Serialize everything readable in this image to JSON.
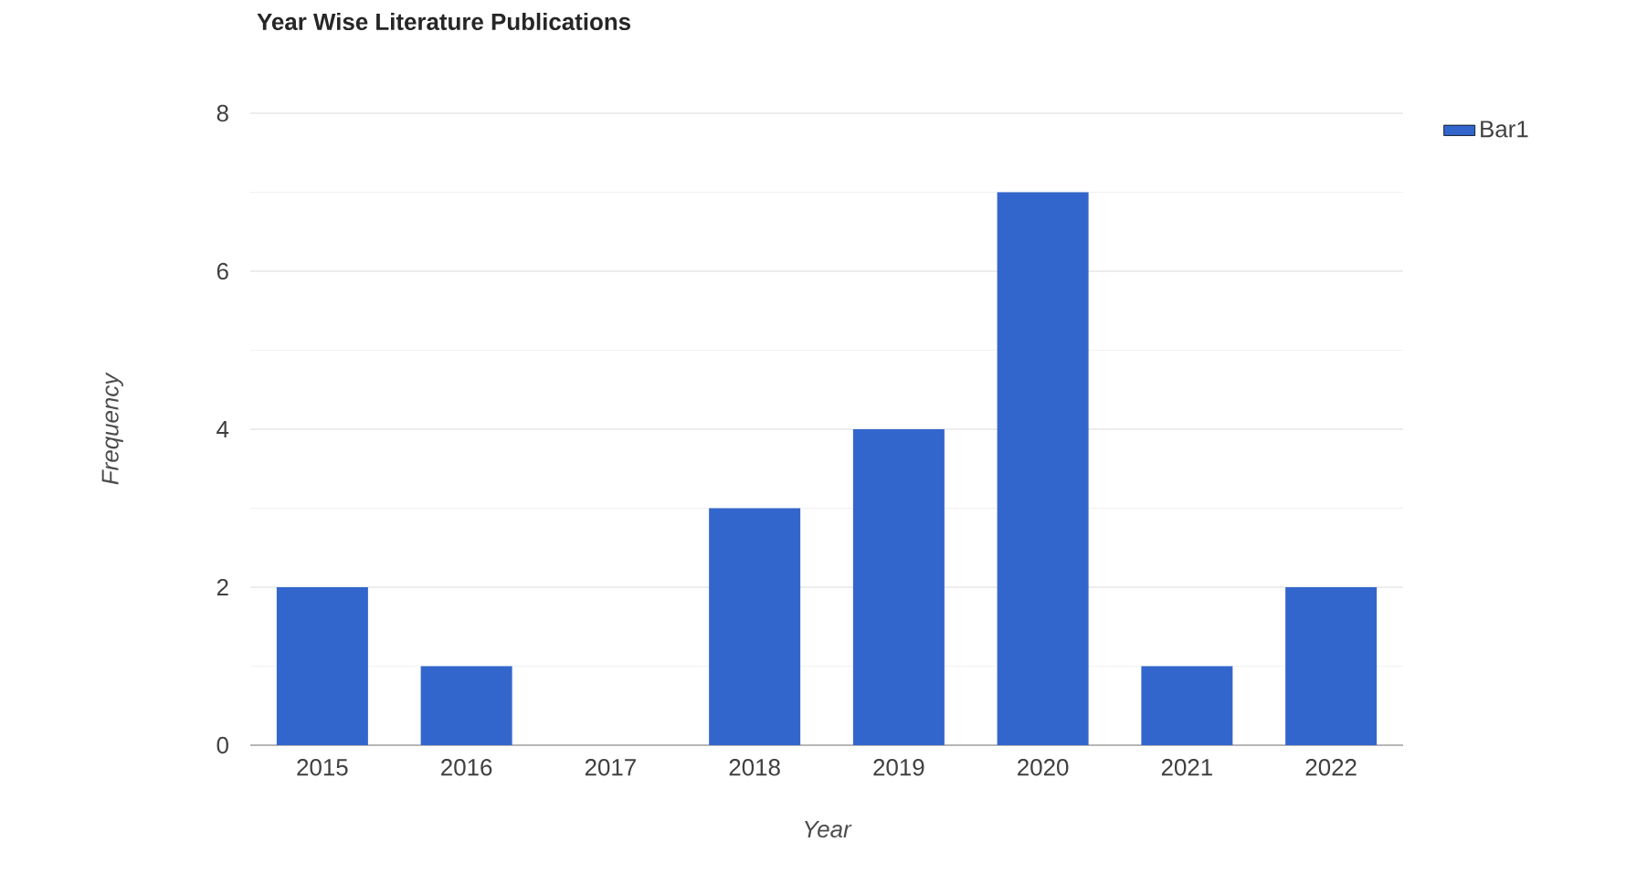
{
  "chart_data": {
    "type": "bar",
    "title": "Year Wise Literature Publications",
    "xlabel": "Year",
    "ylabel": "Frequency",
    "categories": [
      "2015",
      "2016",
      "2017",
      "2018",
      "2019",
      "2020",
      "2021",
      "2022"
    ],
    "series": [
      {
        "name": "Bar1",
        "color": "#3366cc",
        "values": [
          2,
          1,
          0,
          3,
          4,
          7,
          1,
          2
        ]
      }
    ],
    "ylim": [
      0,
      8
    ],
    "yticks": [
      0,
      {
        "value": 1,
        "label": null
      },
      2,
      {
        "value": 3,
        "label": null
      },
      4,
      {
        "value": 5,
        "label": null
      },
      6,
      {
        "value": 7,
        "label": null
      },
      8
    ],
    "grid": "y",
    "legend": "right"
  }
}
